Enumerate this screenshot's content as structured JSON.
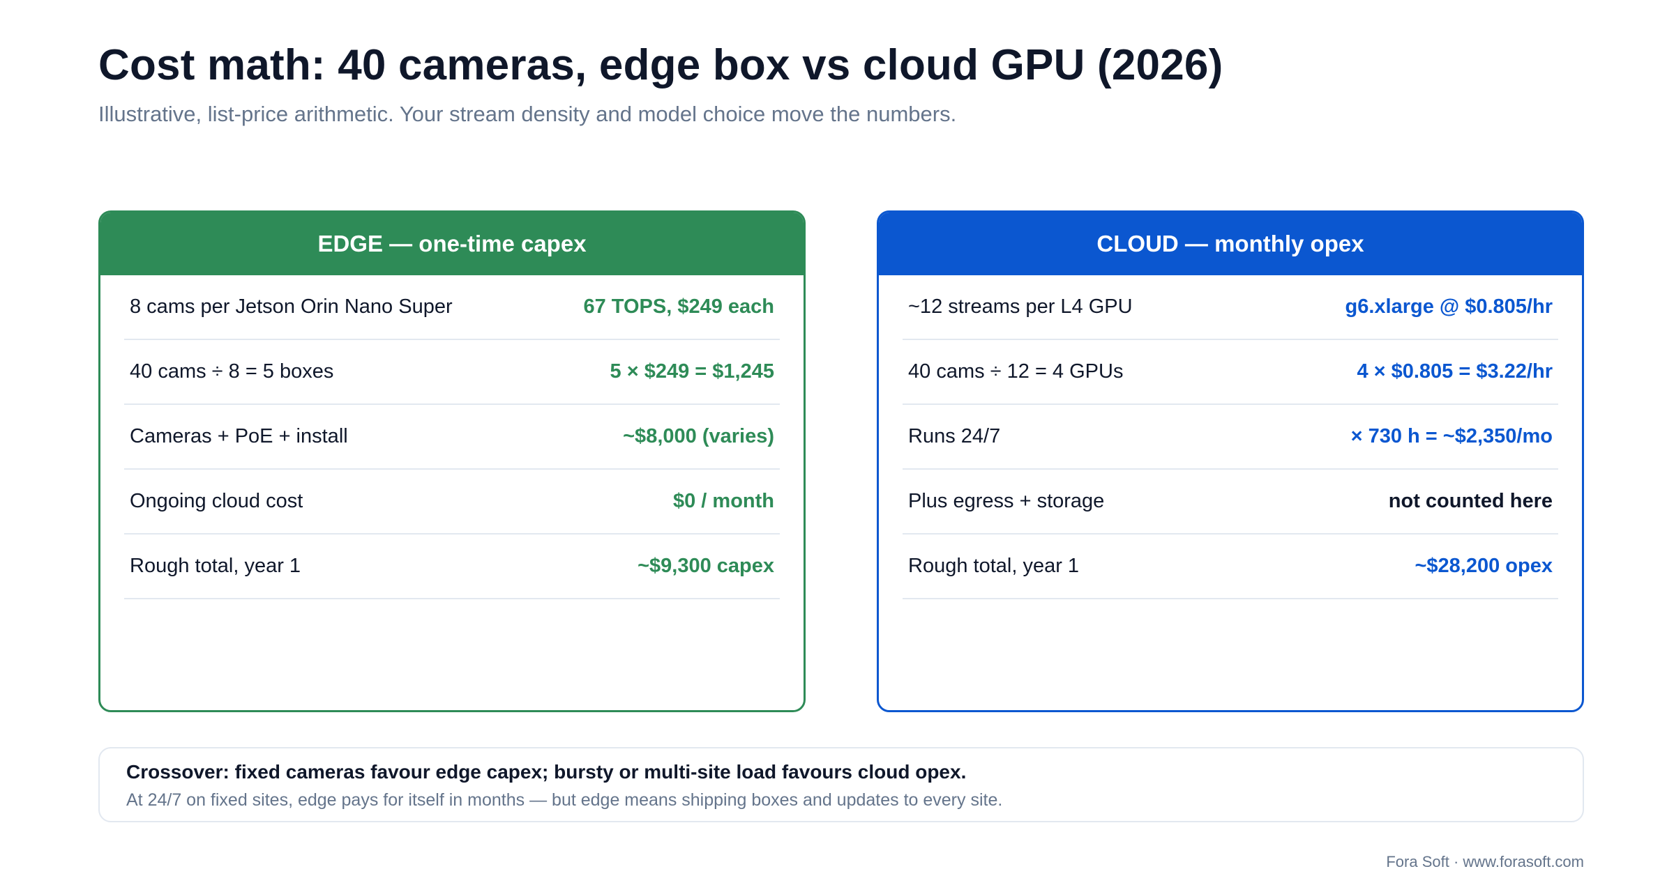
{
  "header": {
    "title": "Cost math: 40 cameras, edge box vs cloud GPU (2026)",
    "subtitle": "Illustrative, list-price arithmetic. Your stream density and model choice move the numbers."
  },
  "edge": {
    "heading": "EDGE — one-time capex",
    "rows": [
      {
        "label": "8 cams per Jetson Orin Nano Super",
        "value": "67 TOPS, $249 each"
      },
      {
        "label": "40 cams ÷ 8 = 5 boxes",
        "value": "5 × $249 = $1,245"
      },
      {
        "label": "Cameras + PoE + install",
        "value": "~$8,000 (varies)"
      },
      {
        "label": "Ongoing cloud cost",
        "value": "$0 / month"
      },
      {
        "label": "Rough total, year 1",
        "value": "~$9,300 capex"
      }
    ]
  },
  "cloud": {
    "heading": "CLOUD — monthly opex",
    "rows": [
      {
        "label": "~12 streams per L4 GPU",
        "value": "g6.xlarge @ $0.805/hr"
      },
      {
        "label": "40 cams ÷ 12 = 4 GPUs",
        "value": "4 × $0.805 = $3.22/hr"
      },
      {
        "label": "Runs 24/7",
        "value": "× 730 h = ~$2,350/mo"
      },
      {
        "label": "Plus egress + storage",
        "value": "not counted here"
      },
      {
        "label": "Rough total, year 1",
        "value": "~$28,200 opex"
      }
    ]
  },
  "note": {
    "title": "Crossover: fixed cameras favour edge capex; bursty or multi-site load favours cloud opex.",
    "body": "At 24/7 on fixed sites, edge pays for itself in months — but edge means shipping boxes and updates to every site."
  },
  "footer": {
    "credit": "Fora Soft · www.forasoft.com"
  },
  "colors": {
    "edge_accent": "#2e8b57",
    "cloud_accent": "#0b57d0",
    "text_dark": "#0f172a",
    "text_muted": "#64748b"
  }
}
